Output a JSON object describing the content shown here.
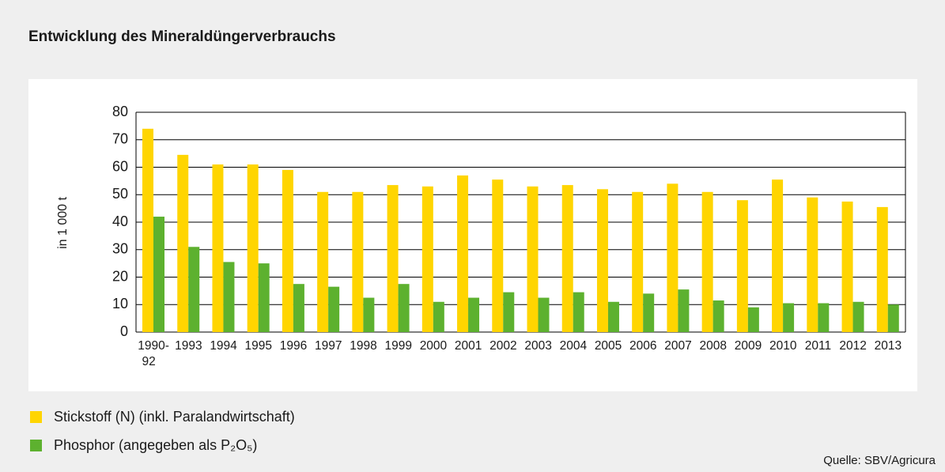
{
  "chart_data": {
    "type": "bar",
    "title": "Entwicklung des Mineraldüngerverbrauchs",
    "y_label": "in 1 000 t",
    "source": "Quelle: SBV/Agricura",
    "categories": [
      "1990-92",
      "1993",
      "1994",
      "1995",
      "1996",
      "1997",
      "1998",
      "1999",
      "2000",
      "2001",
      "2002",
      "2003",
      "2004",
      "2005",
      "2006",
      "2007",
      "2008",
      "2009",
      "2010",
      "2011",
      "2012",
      "2013"
    ],
    "series": [
      {
        "name": "Stickstoff (N) (inkl. Paralandwirtschaft)",
        "color": "#ffd500",
        "values": [
          74,
          64.5,
          61,
          61,
          59,
          51,
          51,
          53.5,
          53,
          57,
          55.5,
          53,
          53.5,
          52,
          51,
          54,
          51,
          48,
          55.5,
          49,
          47.5,
          45.5
        ]
      },
      {
        "name": "Phosphor (angegeben als P₂O₅)",
        "color": "#5db12f",
        "values": [
          42,
          31,
          25.5,
          25,
          17.5,
          16.5,
          12.5,
          17.5,
          11,
          12.5,
          14.5,
          12.5,
          14.5,
          11,
          14,
          15.5,
          11.5,
          9,
          10.5,
          10.5,
          11,
          10
        ]
      }
    ],
    "ylim": [
      0,
      80
    ],
    "yticks": [
      0,
      10,
      20,
      30,
      40,
      50,
      60,
      70,
      80
    ],
    "grid": true,
    "legend": "bottom-left"
  }
}
